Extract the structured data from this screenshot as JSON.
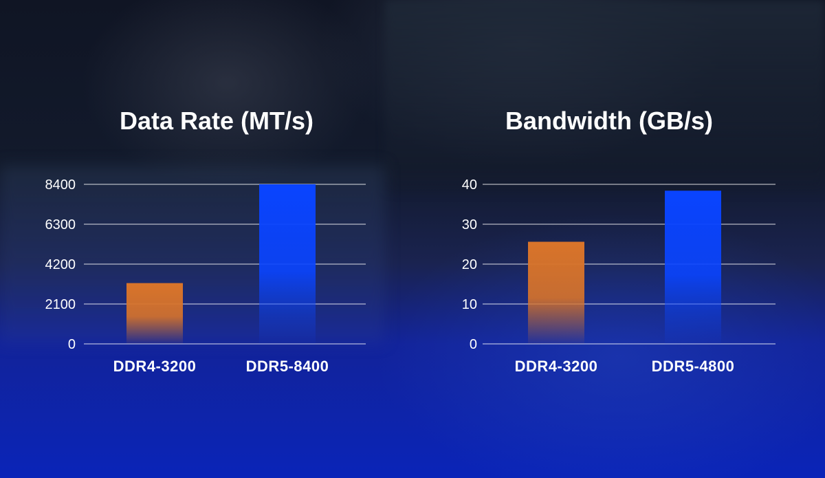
{
  "chart_data": [
    {
      "type": "bar",
      "title": "Data Rate (MT/s)",
      "categories": [
        "DDR4-3200",
        "DDR5-8400"
      ],
      "values": [
        3200,
        8400
      ],
      "ylim": [
        0,
        8400
      ],
      "yticks": [
        0,
        2100,
        4200,
        6300,
        8400
      ],
      "bar_colors": [
        "#d9742a",
        "#0a44ff"
      ],
      "grid": true,
      "xlabel": "",
      "ylabel": ""
    },
    {
      "type": "bar",
      "title": "Bandwidth (GB/s)",
      "categories": [
        "DDR4-3200",
        "DDR5-4800"
      ],
      "values": [
        25.6,
        38.4
      ],
      "ylim": [
        0,
        40
      ],
      "yticks": [
        0,
        10,
        20,
        30,
        40
      ],
      "bar_colors": [
        "#d9742a",
        "#0a44ff"
      ],
      "grid": true,
      "xlabel": "",
      "ylabel": ""
    }
  ]
}
